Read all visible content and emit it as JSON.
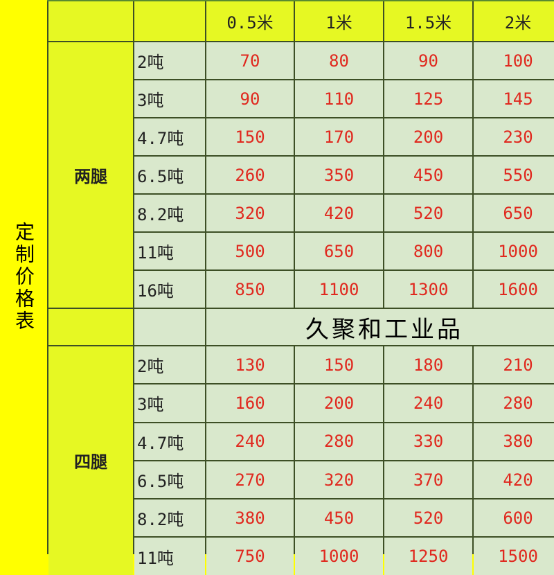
{
  "title": "定制价格表",
  "columns": [
    "0.5米",
    "1米",
    "1.5米",
    "2米"
  ],
  "groups": [
    {
      "label": "两腿",
      "rows": [
        {
          "load": "2吨",
          "prices": [
            "70",
            "80",
            "90",
            "100"
          ]
        },
        {
          "load": "3吨",
          "prices": [
            "90",
            "110",
            "125",
            "145"
          ]
        },
        {
          "load": "4.7吨",
          "prices": [
            "150",
            "170",
            "200",
            "230"
          ]
        },
        {
          "load": "6.5吨",
          "prices": [
            "260",
            "350",
            "450",
            "550"
          ]
        },
        {
          "load": "8.2吨",
          "prices": [
            "320",
            "420",
            "520",
            "650"
          ]
        },
        {
          "load": "11吨",
          "prices": [
            "500",
            "650",
            "800",
            "1000"
          ]
        },
        {
          "load": "16吨",
          "prices": [
            "850",
            "1100",
            "1300",
            "1600"
          ]
        }
      ]
    },
    {
      "label": "四腿",
      "rows": [
        {
          "load": "2吨",
          "prices": [
            "130",
            "150",
            "180",
            "210"
          ]
        },
        {
          "load": "3吨",
          "prices": [
            "160",
            "200",
            "240",
            "280"
          ]
        },
        {
          "load": "4.7吨",
          "prices": [
            "240",
            "280",
            "330",
            "380"
          ]
        },
        {
          "load": "6.5吨",
          "prices": [
            "270",
            "320",
            "370",
            "420"
          ]
        },
        {
          "load": "8.2吨",
          "prices": [
            "380",
            "450",
            "520",
            "600"
          ]
        },
        {
          "load": "11吨",
          "prices": [
            "750",
            "1000",
            "1250",
            "1500"
          ]
        }
      ]
    }
  ],
  "watermark": "久聚和工业品",
  "colors": {
    "side": "#ffff00",
    "header": "#e6f823",
    "cell": "#d9e8cc",
    "price": "#e0281e",
    "border": "#3d4f25"
  }
}
